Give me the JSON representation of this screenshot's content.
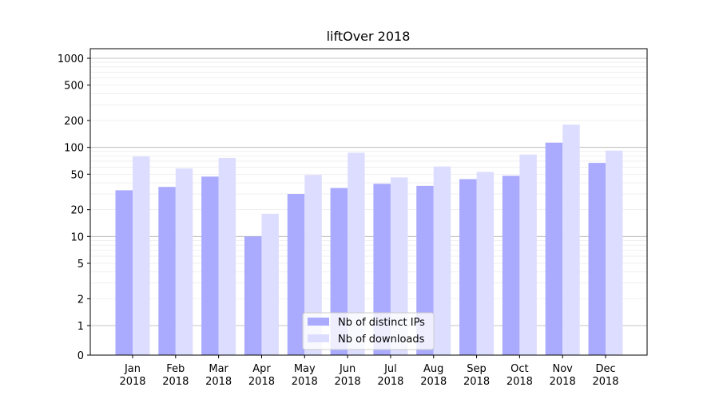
{
  "chart_data": {
    "type": "bar",
    "title": "liftOver 2018",
    "xlabel": "",
    "ylabel": "",
    "yscale": "symlog",
    "ylim": [
      0,
      1300
    ],
    "categories": [
      {
        "month": "Jan",
        "year": "2018"
      },
      {
        "month": "Feb",
        "year": "2018"
      },
      {
        "month": "Mar",
        "year": "2018"
      },
      {
        "month": "Apr",
        "year": "2018"
      },
      {
        "month": "May",
        "year": "2018"
      },
      {
        "month": "Jun",
        "year": "2018"
      },
      {
        "month": "Jul",
        "year": "2018"
      },
      {
        "month": "Aug",
        "year": "2018"
      },
      {
        "month": "Sep",
        "year": "2018"
      },
      {
        "month": "Oct",
        "year": "2018"
      },
      {
        "month": "Nov",
        "year": "2018"
      },
      {
        "month": "Dec",
        "year": "2018"
      }
    ],
    "y_ticks": [
      {
        "value": 0,
        "label": "0"
      },
      {
        "value": 1,
        "label": "1"
      },
      {
        "value": 2,
        "label": "2"
      },
      {
        "value": 5,
        "label": "5"
      },
      {
        "value": 10,
        "label": "10"
      },
      {
        "value": 20,
        "label": "20"
      },
      {
        "value": 50,
        "label": "50"
      },
      {
        "value": 100,
        "label": "100"
      },
      {
        "value": 200,
        "label": "200"
      },
      {
        "value": 500,
        "label": "500"
      },
      {
        "value": 1000,
        "label": "1000"
      }
    ],
    "series": [
      {
        "name": "Nb of distinct IPs",
        "color": "#aaaaff",
        "values": [
          33,
          36,
          47,
          10,
          30,
          35,
          39,
          37,
          44,
          48,
          113,
          67
        ]
      },
      {
        "name": "Nb of downloads",
        "color": "#ddddff",
        "values": [
          79,
          58,
          76,
          18,
          49,
          87,
          46,
          61,
          53,
          83,
          180,
          92
        ]
      }
    ],
    "legend": "bottom-center",
    "grid": true
  }
}
